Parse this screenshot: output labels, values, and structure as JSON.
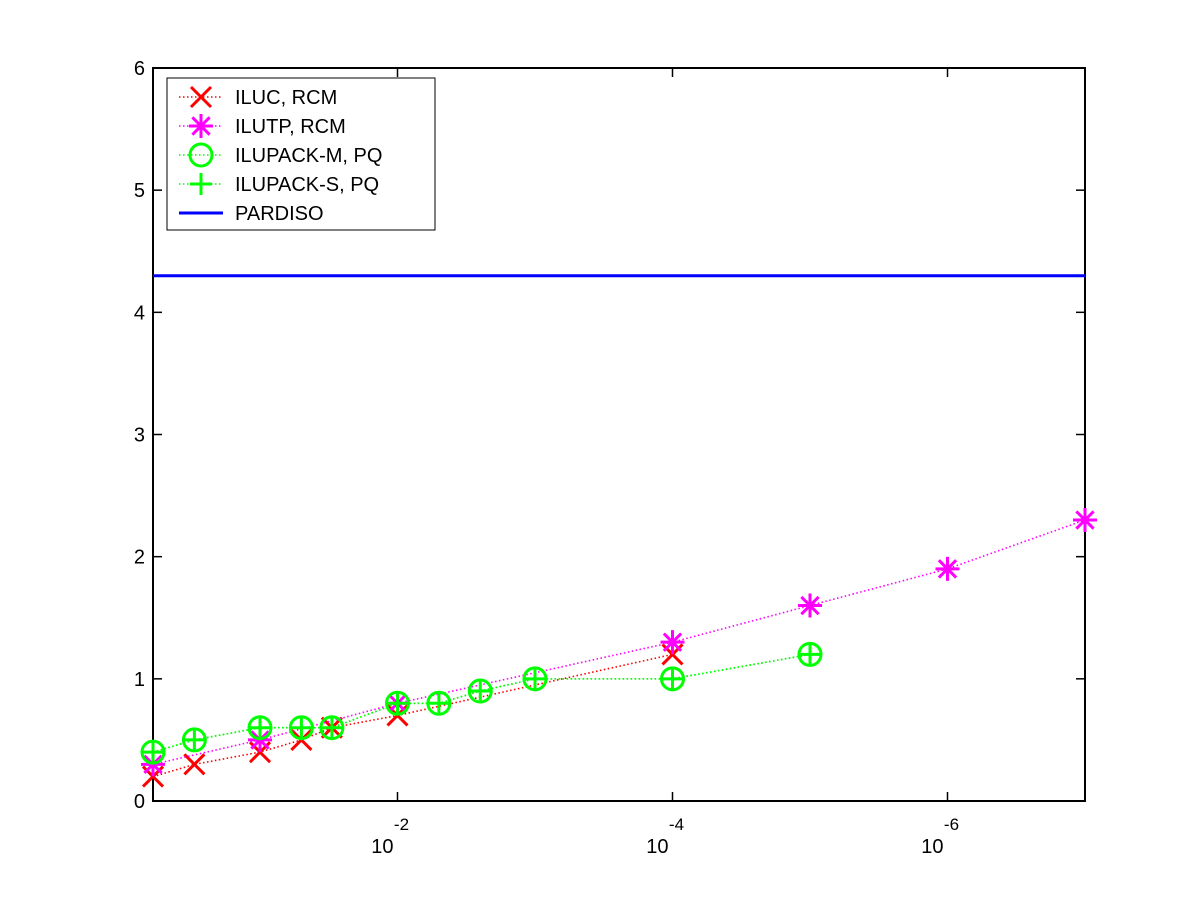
{
  "chart_data": {
    "type": "line",
    "title": "",
    "xlabel": "",
    "ylabel": "",
    "x_scale": "log-reversed",
    "xlim": [
      0.6,
      1e-07
    ],
    "ylim": [
      0,
      6
    ],
    "grid": false,
    "legend_position": "top-left",
    "y_ticks": [
      "0",
      "1",
      "2",
      "3",
      "4",
      "5",
      "6"
    ],
    "x_ticks": [
      {
        "value": 0.01,
        "base": "10",
        "exp": "-2"
      },
      {
        "value": 0.0001,
        "base": "10",
        "exp": "-4"
      },
      {
        "value": 1e-06,
        "base": "10",
        "exp": "-6"
      }
    ],
    "series": [
      {
        "name": "ILUC, RCM",
        "color": "#ff0000",
        "marker": "x",
        "line_style": "dotted",
        "x": [
          0.6,
          0.3,
          0.1,
          0.05,
          0.03,
          0.01,
          0.0001
        ],
        "y": [
          0.2,
          0.3,
          0.4,
          0.5,
          0.6,
          0.7,
          1.2
        ]
      },
      {
        "name": "ILUTP, RCM",
        "color": "#ff00ff",
        "marker": "asterisk",
        "line_style": "dotted",
        "x": [
          0.6,
          0.1,
          0.01,
          0.0001,
          1e-05,
          1e-06,
          1e-07
        ],
        "y": [
          0.3,
          0.5,
          0.8,
          1.3,
          1.6,
          1.9,
          2.3
        ]
      },
      {
        "name": "ILUPACK-M, PQ",
        "color": "#00ff00",
        "marker": "circle",
        "line_style": "dotted",
        "x": [
          0.6,
          0.3,
          0.1,
          0.05,
          0.03,
          0.01,
          0.005,
          0.0025,
          0.001,
          0.0001,
          1e-05
        ],
        "y": [
          0.4,
          0.5,
          0.6,
          0.6,
          0.6,
          0.8,
          0.8,
          0.9,
          1.0,
          1.0,
          1.2
        ]
      },
      {
        "name": "ILUPACK-S, PQ",
        "color": "#00ff00",
        "marker": "plus",
        "line_style": "dotted",
        "x": [
          0.6,
          0.3,
          0.1,
          0.05,
          0.03,
          0.01,
          0.005,
          0.0025,
          0.001,
          0.0001,
          1e-05
        ],
        "y": [
          0.4,
          0.5,
          0.6,
          0.6,
          0.6,
          0.8,
          0.8,
          0.9,
          1.0,
          1.0,
          1.2
        ]
      },
      {
        "name": "PARDISO",
        "color": "#0000ff",
        "marker": "none",
        "line_style": "solid",
        "x": [
          0.6,
          1e-07
        ],
        "y": [
          4.3,
          4.3
        ]
      }
    ]
  }
}
